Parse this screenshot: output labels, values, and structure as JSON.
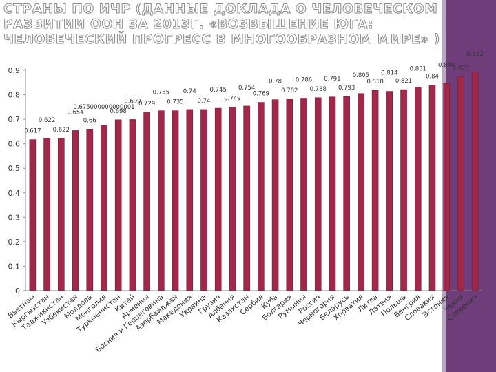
{
  "page": {
    "title": "СТРАНЫ ПО ИЧР (ДАННЫЕ ДОКЛАДА О ЧЕЛОВЕЧЕСКОМ РАЗВИТИИ ООН ЗА 2013Г. «ВОЗВЫШЕНИЕ ЮГА: ЧЕЛОВЕЧЕСКИЙ ПРОГРЕСС В МНОГООБРАЗНОМ МИРЕ» )"
  },
  "colors": {
    "bar": "#a0284a",
    "bar_edge": "#7a1c37",
    "axis": "#8a8a8a",
    "text": "#333333",
    "background_band": "#6e3d7a"
  },
  "chart_data": {
    "type": "bar",
    "title": "",
    "xlabel": "",
    "ylabel": "",
    "ylim": [
      0,
      0.9
    ],
    "y_ticks": [
      "0",
      "0.1",
      "0.2",
      "0.3",
      "0.4",
      "0.5",
      "0.6",
      "0.7",
      "0.8",
      "0.9"
    ],
    "grid": false,
    "legend": "none",
    "categories": [
      "Вьетнам",
      "Кыргызстан",
      "Таджикистан",
      "Узбекистан",
      "Молдова",
      "Монголия",
      "Туркменистан",
      "Китай",
      "Армения",
      "Босния и Герцеговина",
      "Азербайджан",
      "Македония",
      "Украина",
      "Грузия",
      "Албания",
      "Казахстан",
      "Сербия",
      "Куба",
      "Болгария",
      "Румыния",
      "Россия",
      "Черногория",
      "Беларусь",
      "Хорватия",
      "Литва",
      "Латвия",
      "Польша",
      "Венгрия",
      "Словакия",
      "Эстония",
      "Чехия",
      "Словения"
    ],
    "values": [
      0.617,
      0.622,
      0.622,
      0.654,
      0.66,
      0.675,
      0.698,
      0.699,
      0.729,
      0.735,
      0.735,
      0.74,
      0.74,
      0.745,
      0.749,
      0.754,
      0.769,
      0.78,
      0.782,
      0.786,
      0.788,
      0.791,
      0.793,
      0.805,
      0.818,
      0.814,
      0.821,
      0.831,
      0.84,
      0.846,
      0.873,
      0.892
    ],
    "data_labels": [
      "0.617",
      "0.622",
      "0.622",
      "0.654",
      "0.66",
      "0.675000000000001",
      "0.698",
      "0.699",
      "0.729",
      "0.735",
      "0.735",
      "0.74",
      "0.74",
      "0.745",
      "0.749",
      "0.754",
      "0.769",
      "0.78",
      "0.782",
      "0.786",
      "0.788",
      "0.791",
      "0.793",
      "0.805",
      "0.818",
      "0.814",
      "0.821",
      "0.831",
      "0.84",
      "0.846",
      "0.873",
      "0.892"
    ]
  }
}
